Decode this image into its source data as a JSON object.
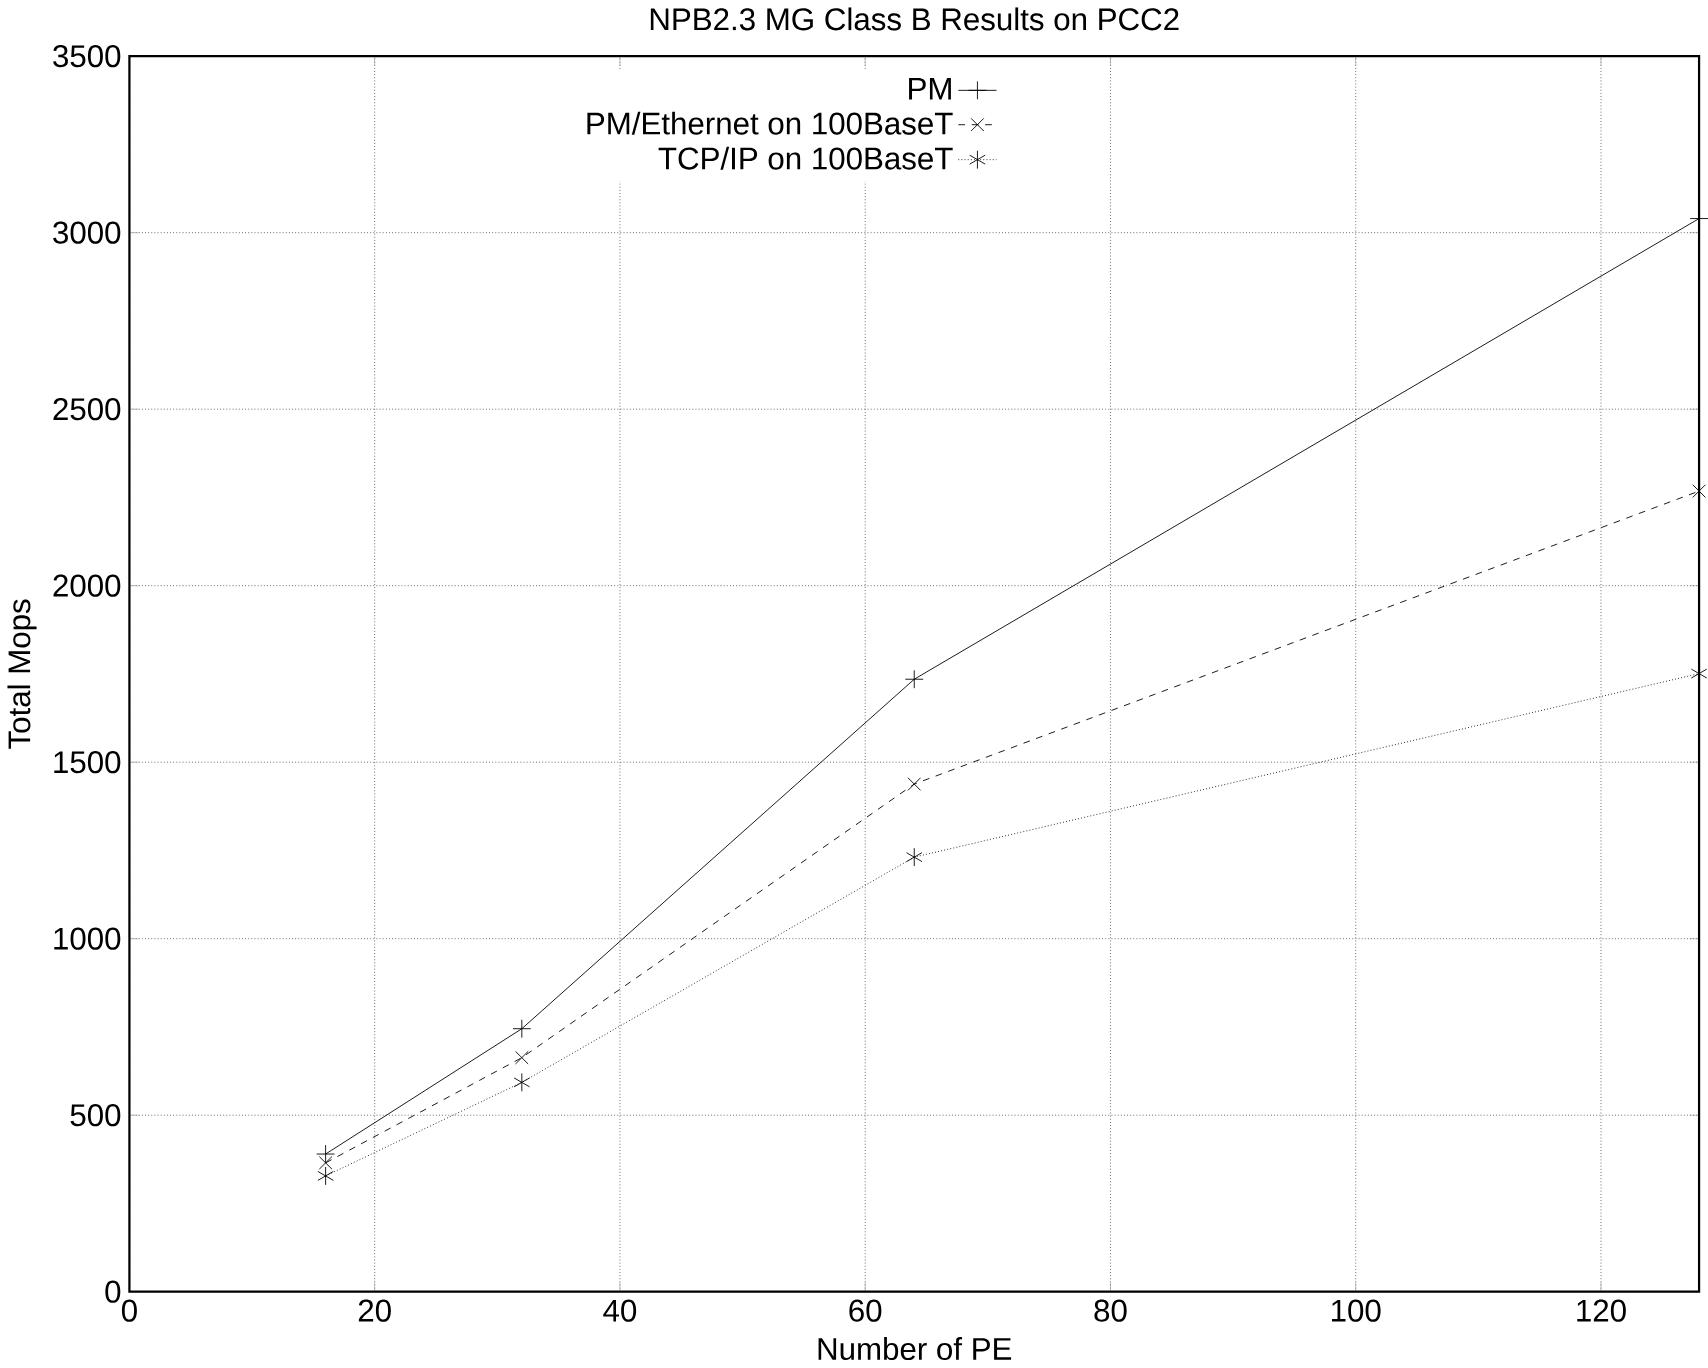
{
  "chart_data": {
    "type": "line",
    "title": "NPB2.3 MG Class B Results on PCC2",
    "xlabel": "Number of PE",
    "ylabel": "Total Mops",
    "x": [
      16,
      32,
      64,
      128
    ],
    "series": [
      {
        "name": "PM",
        "color": "#000000",
        "marker": "cross",
        "line_style": "solid",
        "values": [
          390,
          745,
          1735,
          3040
        ]
      },
      {
        "name": "PM/Ethernet on 100BaseT",
        "color": "#000000",
        "marker": "cross",
        "line_style": "dashed",
        "values": [
          365,
          663,
          1438,
          2268
        ]
      },
      {
        "name": "TCP/IP on 100BaseT",
        "color": "#000000",
        "marker": "cross",
        "line_style": "dotted",
        "values": [
          328,
          593,
          1231,
          1751
        ]
      }
    ],
    "xlim": [
      0,
      128
    ],
    "ylim": [
      0,
      3500
    ],
    "xticks": [
      0,
      20,
      40,
      60,
      80,
      100,
      120
    ],
    "yticks": [
      0,
      500,
      1000,
      1500,
      2000,
      2500,
      3000,
      3500
    ],
    "grid": true,
    "legend": "top"
  }
}
